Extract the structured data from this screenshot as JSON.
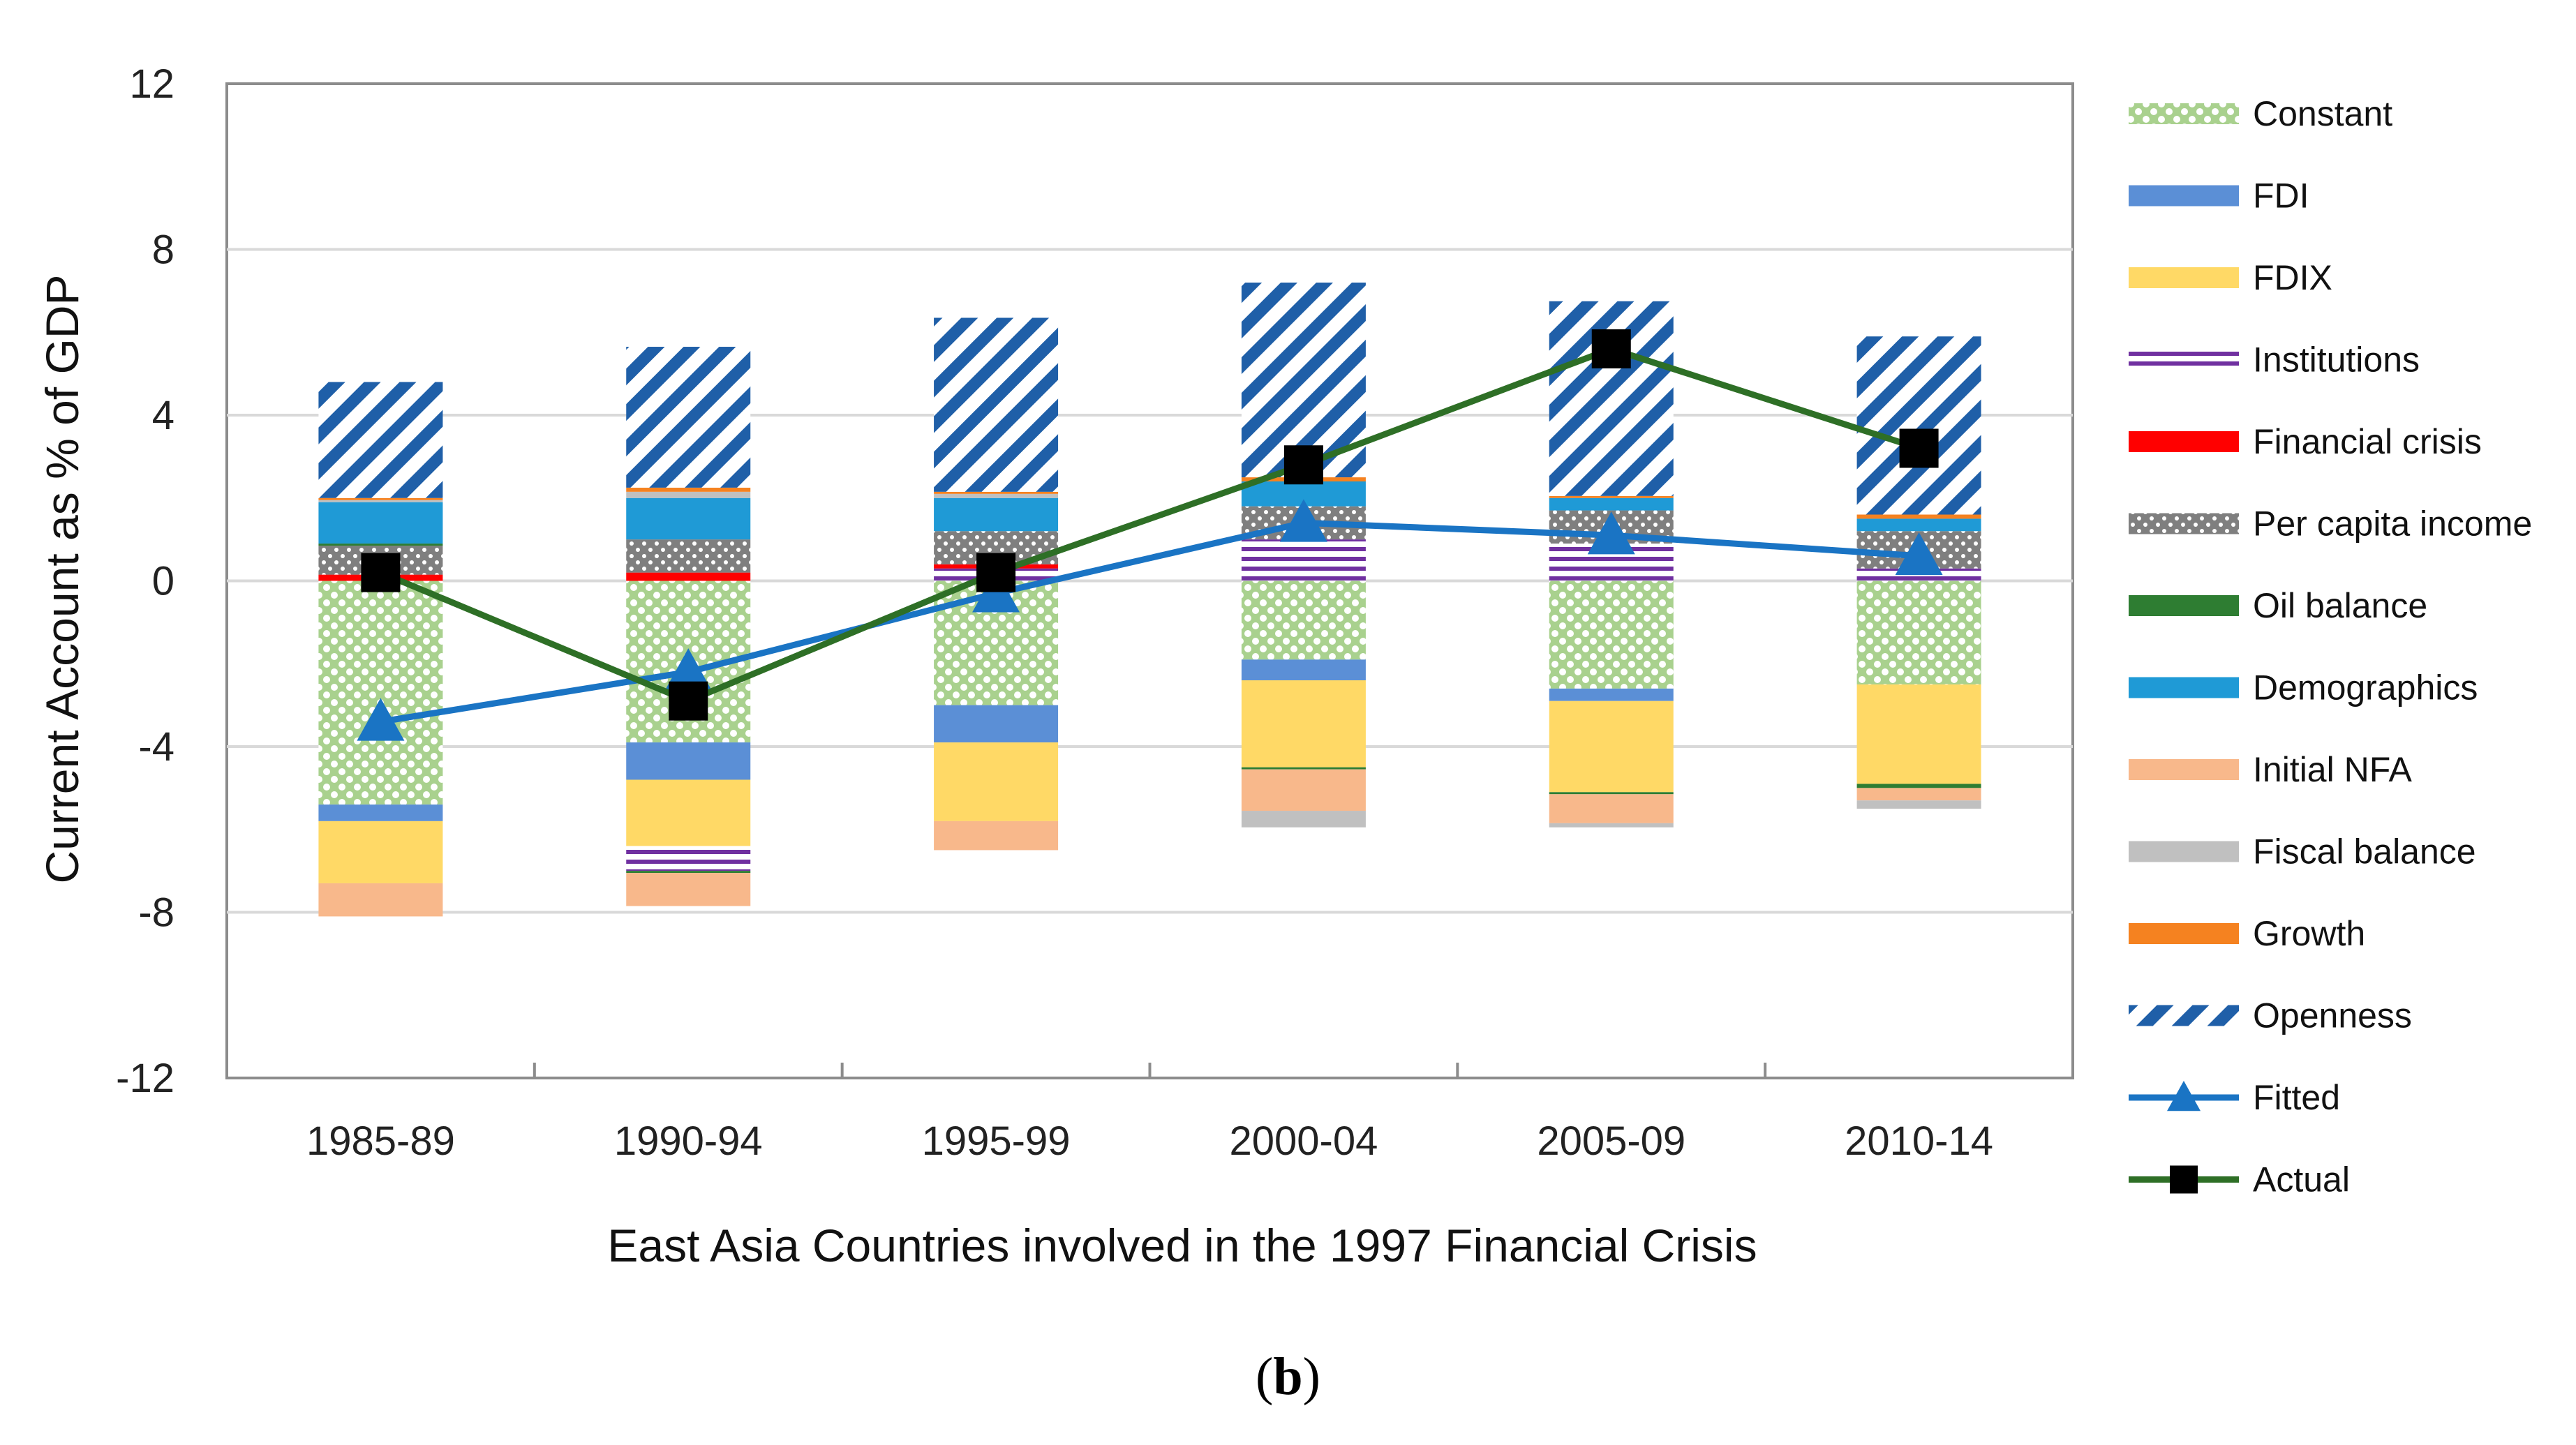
{
  "caption": {
    "open": "(",
    "label": "b",
    "close": ")"
  },
  "chart_data": {
    "type": "bar",
    "stacked": true,
    "categories": [
      "1985-89",
      "1990-94",
      "1995-99",
      "2000-04",
      "2005-09",
      "2010-14"
    ],
    "ylabel": "Current Account as % of GDP",
    "xlabel": "East Asia Countries involved in the 1997 Financial Crisis",
    "ylim": [
      -12,
      12
    ],
    "yticks": [
      12,
      8,
      4,
      0,
      -4,
      -8,
      -12
    ],
    "grid": true,
    "legend_position": "right",
    "series": [
      {
        "name": "Constant",
        "color": "#a9d18e",
        "pattern": "dots-green",
        "values": [
          -5.4,
          -3.9,
          -3.0,
          -1.9,
          -2.6,
          -2.5
        ]
      },
      {
        "name": "FDI",
        "color": "#5b8fd6",
        "pattern": "solid",
        "values": [
          -0.4,
          -0.9,
          -0.9,
          -0.5,
          -0.3,
          0.0
        ]
      },
      {
        "name": "FDIX",
        "color": "#ffd966",
        "pattern": "solid",
        "values": [
          -1.5,
          -1.6,
          -1.9,
          -2.1,
          -2.2,
          -2.4
        ]
      },
      {
        "name": "Institutions",
        "color": "#7030a0",
        "pattern": "hstripes",
        "values": [
          0.0,
          -0.6,
          0.3,
          1.0,
          0.9,
          0.3
        ]
      },
      {
        "name": "Financial crisis",
        "color": "#ff0000",
        "pattern": "solid",
        "values": [
          0.15,
          0.2,
          0.1,
          0.0,
          0.0,
          0.0
        ]
      },
      {
        "name": "Per capita income",
        "color": "#7f7f7f",
        "pattern": "dots-grey",
        "values": [
          0.7,
          0.8,
          0.8,
          0.8,
          0.8,
          0.9
        ]
      },
      {
        "name": "Oil balance",
        "color": "#2e7d32",
        "pattern": "solid",
        "values": [
          0.05,
          -0.05,
          0.0,
          -0.05,
          -0.05,
          -0.1
        ]
      },
      {
        "name": "Demographics",
        "color": "#1f9ad6",
        "pattern": "solid",
        "values": [
          1.0,
          1.0,
          0.8,
          0.6,
          0.3,
          0.3
        ]
      },
      {
        "name": "Initial NFA",
        "color": "#f8b88b",
        "pattern": "solid",
        "values": [
          -0.8,
          -0.8,
          -0.7,
          -1.0,
          -0.7,
          -0.3
        ]
      },
      {
        "name": "Fiscal balance",
        "color": "#c0c0c0",
        "pattern": "solid",
        "values": [
          0.05,
          0.15,
          0.1,
          -0.4,
          -0.1,
          -0.2
        ]
      },
      {
        "name": "Growth",
        "color": "#f58220",
        "pattern": "solid",
        "values": [
          0.05,
          0.1,
          0.05,
          0.1,
          0.05,
          0.1
        ]
      },
      {
        "name": "Openness",
        "color": "#1f5fa8",
        "pattern": "diag",
        "values": [
          2.8,
          3.4,
          4.2,
          4.7,
          4.7,
          4.3
        ]
      }
    ],
    "lines": [
      {
        "name": "Fitted",
        "color": "#1a74c4",
        "marker": "triangle",
        "values": [
          -3.4,
          -2.2,
          -0.3,
          1.4,
          1.1,
          0.6
        ]
      },
      {
        "name": "Actual",
        "color": "#2e6f26",
        "marker": "square",
        "values": [
          0.2,
          -2.9,
          0.2,
          2.8,
          5.6,
          3.2
        ]
      }
    ]
  }
}
